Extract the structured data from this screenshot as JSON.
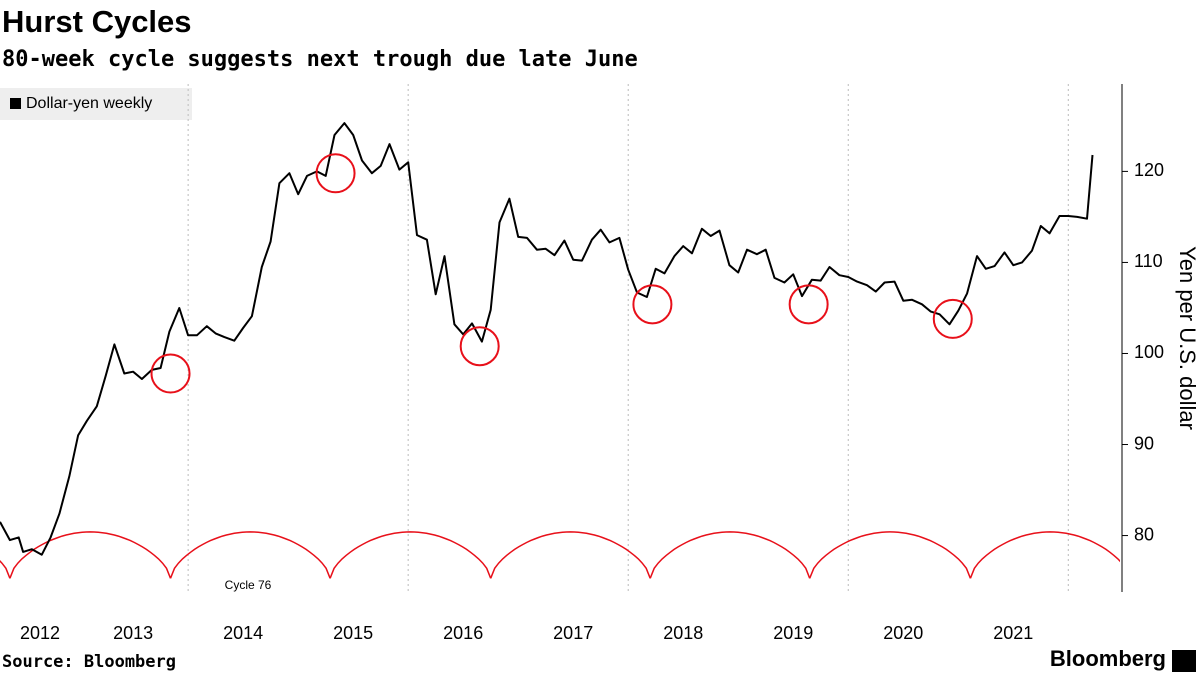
{
  "chart_data": {
    "type": "line",
    "title": "Hurst Cycles",
    "subtitle": "80-week cycle suggests next trough due late June",
    "ylabel": "Yen per U.S. dollar",
    "source": "Source: Bloomberg",
    "brand": "Bloomberg",
    "x": [
      2012.29,
      2012.38,
      2012.46,
      2012.5,
      2012.58,
      2012.67,
      2012.75,
      2012.83,
      2012.92,
      2013.0,
      2013.08,
      2013.17,
      2013.25,
      2013.33,
      2013.42,
      2013.5,
      2013.58,
      2013.67,
      2013.75,
      2013.83,
      2013.92,
      2014.0,
      2014.08,
      2014.17,
      2014.25,
      2014.33,
      2014.42,
      2014.5,
      2014.58,
      2014.67,
      2014.75,
      2014.83,
      2014.92,
      2015.0,
      2015.08,
      2015.17,
      2015.25,
      2015.33,
      2015.42,
      2015.5,
      2015.58,
      2015.67,
      2015.75,
      2015.83,
      2015.92,
      2016.0,
      2016.08,
      2016.17,
      2016.25,
      2016.33,
      2016.42,
      2016.5,
      2016.58,
      2016.67,
      2016.75,
      2016.83,
      2016.92,
      2017.0,
      2017.08,
      2017.17,
      2017.25,
      2017.33,
      2017.42,
      2017.5,
      2017.58,
      2017.67,
      2017.75,
      2017.83,
      2017.92,
      2018.0,
      2018.08,
      2018.17,
      2018.25,
      2018.33,
      2018.42,
      2018.5,
      2018.58,
      2018.67,
      2018.75,
      2018.83,
      2018.92,
      2019.0,
      2019.08,
      2019.17,
      2019.25,
      2019.33,
      2019.42,
      2019.5,
      2019.58,
      2019.67,
      2019.75,
      2019.83,
      2019.92,
      2020.0,
      2020.08,
      2020.17,
      2020.25,
      2020.33,
      2020.42,
      2020.5,
      2020.58,
      2020.67,
      2020.75,
      2020.83,
      2020.92,
      2021.0,
      2021.08,
      2021.17,
      2021.25,
      2021.33,
      2021.42,
      2021.5,
      2021.58,
      2021.67,
      2021.75,
      2021.83,
      2021.92,
      2022.0,
      2022.08,
      2022.17,
      2022.22
    ],
    "series": [
      {
        "name": "Dollar-yen weekly",
        "color": "#000000",
        "values": [
          81.5,
          79.5,
          79.8,
          78.2,
          78.5,
          77.9,
          79.8,
          82.4,
          86.5,
          91,
          92.6,
          94.2,
          97.5,
          101,
          97.8,
          98,
          97.2,
          98.2,
          98.4,
          102.4,
          105,
          102,
          102,
          103,
          102.2,
          101.8,
          101.4,
          102.8,
          104.1,
          109.5,
          112.3,
          118.7,
          119.8,
          117.5,
          119.5,
          120,
          119.5,
          124,
          125.3,
          124,
          121.2,
          119.8,
          120.6,
          123,
          120.2,
          121,
          113,
          112.5,
          106.5,
          110.7,
          103.2,
          102.1,
          103.3,
          101.3,
          104.8,
          114.4,
          117,
          112.8,
          112.7,
          111.4,
          111.5,
          110.8,
          112.4,
          110.3,
          110.2,
          112.5,
          113.6,
          112.2,
          112.7,
          109.2,
          106.7,
          106.2,
          109.3,
          108.8,
          110.7,
          111.8,
          111,
          113.7,
          112.9,
          113.5,
          109.7,
          108.9,
          111.4,
          110.9,
          111.4,
          108.3,
          107.8,
          108.7,
          106.3,
          108.1,
          108,
          109.5,
          108.6,
          108.4,
          107.9,
          107.5,
          106.8,
          107.8,
          107.9,
          105.8,
          105.9,
          105.4,
          104.6,
          104.3,
          103.2,
          104.7,
          106.6,
          110.7,
          109.3,
          109.6,
          111.1,
          109.7,
          110,
          111.3,
          114,
          113.2,
          115.1,
          115.1,
          115,
          114.8,
          121.8
        ]
      }
    ],
    "xlim": [
      2012.29,
      2022.47
    ],
    "xticks": [
      2012,
      2013,
      2014,
      2015,
      2016,
      2017,
      2018,
      2019,
      2020,
      2021
    ],
    "xgrid": [
      2014,
      2016,
      2018,
      2020,
      2022
    ],
    "ylim": [
      73.8,
      129.6
    ],
    "yticks": [
      80,
      90,
      100,
      110,
      120
    ],
    "cycle": {
      "label": "Cycle 76",
      "color": "#e8101a",
      "trough": 75.3,
      "peak": 80.4,
      "troughs": [
        2010.93,
        2012.38,
        2013.84,
        2015.29,
        2016.75,
        2018.2,
        2019.65,
        2021.11,
        2022.56
      ]
    },
    "circles": [
      {
        "x": 2013.84,
        "y": 97.8
      },
      {
        "x": 2015.34,
        "y": 119.8
      },
      {
        "x": 2016.65,
        "y": 100.8
      },
      {
        "x": 2018.22,
        "y": 105.4
      },
      {
        "x": 2019.64,
        "y": 105.4
      },
      {
        "x": 2020.95,
        "y": 103.8
      }
    ]
  }
}
